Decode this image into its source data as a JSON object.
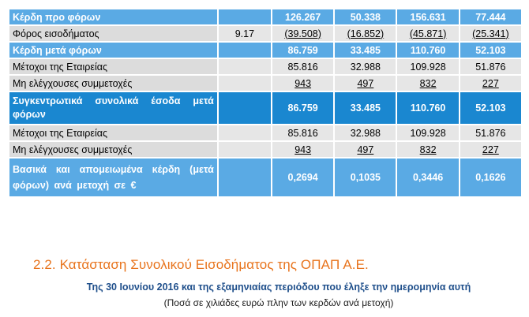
{
  "table": {
    "rows": [
      {
        "label": "Κέρδη προ φόρων",
        "note": "",
        "v1": "126.267",
        "v2": "50.338",
        "v3": "156.631",
        "v4": "77.444"
      },
      {
        "label": "Φόρος εισοδήματος",
        "note": "9.17",
        "v1": "(39.508)",
        "v2": "(16.852)",
        "v3": "(45.871)",
        "v4": "(25.341)"
      },
      {
        "label": "Κέρδη μετά φόρων",
        "note": "",
        "v1": "86.759",
        "v2": "33.485",
        "v3": "110.760",
        "v4": "52.103"
      },
      {
        "label": "Μέτοχοι της Εταιρείας",
        "note": "",
        "v1": "85.816",
        "v2": "32.988",
        "v3": "109.928",
        "v4": "51.876"
      },
      {
        "label": "Μη ελέγχουσες συμμετοχές",
        "note": "",
        "v1": "943",
        "v2": "497",
        "v3": "832",
        "v4": "227"
      },
      {
        "label": "Συγκεντρωτικά συνολικά έσοδα μετά φόρων",
        "note": "",
        "v1": "86.759",
        "v2": "33.485",
        "v3": "110.760",
        "v4": "52.103"
      },
      {
        "label": "Μέτοχοι της Εταιρείας",
        "note": "",
        "v1": "85.816",
        "v2": "32.988",
        "v3": "109.928",
        "v4": "51.876"
      },
      {
        "label": "Μη ελέγχουσες συμμετοχές",
        "note": "",
        "v1": "943",
        "v2": "497",
        "v3": "832",
        "v4": "227"
      },
      {
        "label": "Βασικά και απομειωμένα κέρδη (μετά φόρων) ανά μετοχή σε €",
        "note": "",
        "v1": "0,2694",
        "v2": "0,1035",
        "v3": "0,3446",
        "v4": "0,1626"
      }
    ]
  },
  "section": {
    "title": "2.2. Κατάσταση Συνολικού Εισοδήματος της ΟΠΑΠ Α.Ε.",
    "subtitle": "Της 30 Ιουνίου 2016 και της εξαμηνιαίας περιόδου που έληξε την ημερομηνία αυτή",
    "note": "(Ποσά σε χιλιάδες ευρώ πλην των κερδών ανά μετοχή)"
  },
  "colors": {
    "highlight": "#5aaae4",
    "highlight_dark": "#1a87d0",
    "row_gray": "#e6e6e6",
    "title_orange": "#e8741d",
    "subtitle_blue": "#1f4f8b"
  }
}
